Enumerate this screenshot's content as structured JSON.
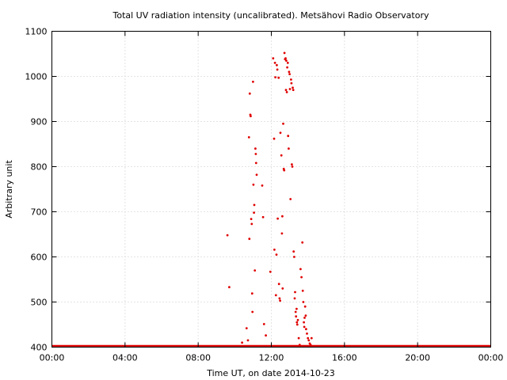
{
  "chart_data": {
    "type": "scatter",
    "title": "Total UV radiation intensity (uncalibrated). Metsähovi Radio Observatory",
    "xlabel": "Time UT, on date 2014-10-23",
    "ylabel": "Arbitrary unit",
    "xlim": [
      0,
      24
    ],
    "ylim": [
      400,
      1100
    ],
    "x_unit": "hours UT",
    "xticks": [
      0,
      4,
      8,
      12,
      16,
      20,
      24
    ],
    "xtick_labels": [
      "00:00",
      "04:00",
      "08:00",
      "12:00",
      "16:00",
      "20:00",
      "00:00"
    ],
    "yticks": [
      400,
      500,
      600,
      700,
      800,
      900,
      1000,
      1100
    ],
    "ytick_labels": [
      "400",
      "500",
      "600",
      "700",
      "800",
      "900",
      "1000",
      "1100"
    ],
    "grid": true,
    "legend": "none",
    "color": "#e00000",
    "baseline_value": 400,
    "series": [
      {
        "x": [
          9.6,
          9.7,
          10.4,
          10.65,
          10.72,
          10.78,
          10.8,
          10.82,
          10.85,
          10.87,
          10.9,
          10.93,
          10.95,
          10.97,
          11.0,
          11.02,
          11.05,
          11.07,
          11.1,
          11.13,
          11.15,
          11.17,
          11.2,
          11.5,
          11.55,
          11.6,
          11.7,
          11.95,
          12.1,
          12.15,
          12.17,
          12.2,
          12.22,
          12.25,
          12.28,
          12.3,
          12.33,
          12.35,
          12.4,
          12.42,
          12.45,
          12.48,
          12.5,
          12.55,
          12.58,
          12.6,
          12.62,
          12.65,
          12.68,
          12.7,
          12.72,
          12.75,
          12.78,
          12.8,
          12.82,
          12.85,
          12.87,
          12.9,
          12.92,
          12.95,
          12.97,
          13.0,
          13.02,
          13.05,
          13.08,
          13.1,
          13.12,
          13.15,
          13.17,
          13.2,
          13.22,
          13.25,
          13.28,
          13.3,
          13.33,
          13.35,
          13.38,
          13.4,
          13.42,
          13.45,
          13.5,
          13.55,
          13.6,
          13.65,
          13.7,
          13.72,
          13.75,
          13.78,
          13.8,
          13.82,
          13.85,
          13.88,
          13.9,
          13.95,
          14.0,
          14.05,
          14.1,
          14.15,
          14.2
        ],
        "y": [
          648,
          533,
          410,
          442,
          415,
          865,
          640,
          962,
          915,
          912,
          684,
          673,
          519,
          478,
          988,
          760,
          698,
          715,
          570,
          840,
          828,
          808,
          782,
          758,
          688,
          451,
          426,
          567,
          1040,
          862,
          616,
          1030,
          998,
          515,
          605,
          1025,
          1015,
          685,
          997,
          540,
          508,
          503,
          875,
          825,
          652,
          690,
          530,
          895,
          795,
          792,
          1052,
          1038,
          1040,
          970,
          1035,
          965,
          1020,
          1030,
          868,
          840,
          1010,
          1005,
          972,
          728,
          993,
          985,
          805,
          800,
          975,
          970,
          612,
          600,
          508,
          522,
          478,
          468,
          485,
          455,
          450,
          460,
          420,
          405,
          573,
          555,
          632,
          525,
          500,
          455,
          445,
          465,
          490,
          470,
          440,
          430,
          420,
          415,
          408,
          405,
          420
        ]
      }
    ]
  }
}
